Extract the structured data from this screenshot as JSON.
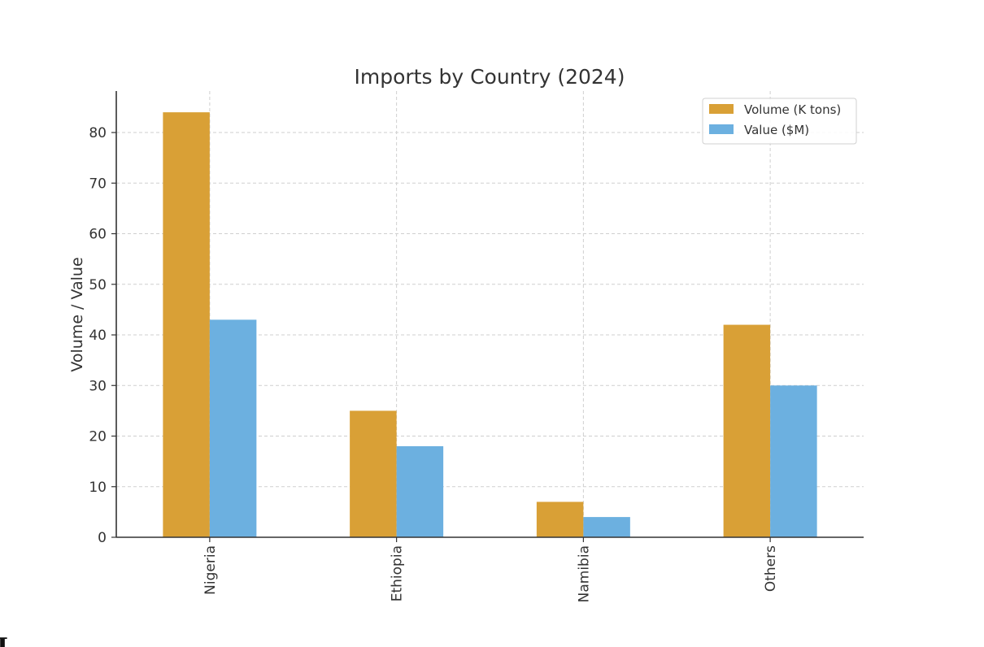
{
  "chart_data": {
    "type": "bar",
    "title": "Imports by Country (2024)",
    "xlabel": "",
    "ylabel": "Volume / Value",
    "categories": [
      "Nigeria",
      "Ethiopia",
      "Namibia",
      "Others"
    ],
    "series": [
      {
        "name": "Volume (K tons)",
        "values": [
          84,
          25,
          7,
          42
        ],
        "color": "#D9A036"
      },
      {
        "name": "Value ($M)",
        "values": [
          43,
          18,
          4,
          30
        ],
        "color": "#6CB0E0"
      }
    ],
    "ylim": [
      0,
      88.2
    ],
    "yticks": [
      0,
      10,
      20,
      30,
      40,
      50,
      60,
      70,
      80
    ],
    "grid": true,
    "legend_position": "top-right",
    "xtick_rotation": "vertical"
  },
  "footer_fragment": "I"
}
